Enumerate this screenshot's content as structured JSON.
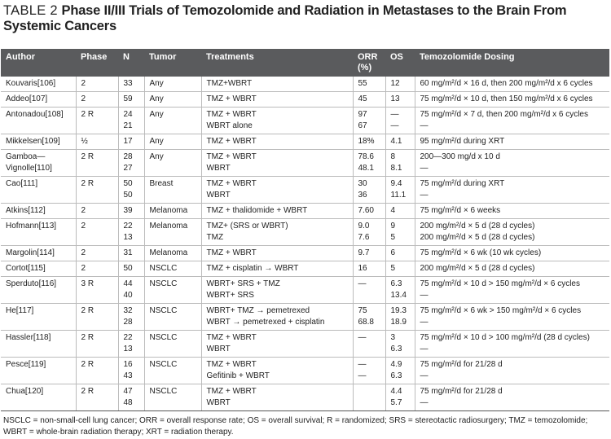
{
  "title": {
    "label": "TABLE 2",
    "text": "Phase II/III Trials of Temozolomide and Radiation in Metastases to the Brain From Systemic Cancers"
  },
  "table": {
    "header": [
      [
        "Author"
      ],
      [
        "Phase"
      ],
      [
        "N"
      ],
      [
        "Tumor"
      ],
      [
        "Treatments"
      ],
      [
        "ORR",
        "(%)"
      ],
      [
        "OS"
      ],
      [
        "Temozolomide Dosing"
      ]
    ],
    "rows": [
      [
        [
          "Kouvaris[106]"
        ],
        [
          "2"
        ],
        [
          "33"
        ],
        [
          "Any"
        ],
        [
          "TMZ+WBRT"
        ],
        [
          "55"
        ],
        [
          "12"
        ],
        [
          "60 mg/m²/d × 16 d, then 200 mg/m²/d x 6 cycles"
        ]
      ],
      [
        [
          "Addeo[107]"
        ],
        [
          "2"
        ],
        [
          "59"
        ],
        [
          "Any"
        ],
        [
          "TMZ + WBRT"
        ],
        [
          "45"
        ],
        [
          "13"
        ],
        [
          "75 mg/m²/d × 10 d, then 150 mg/m²/d x 6 cycles"
        ]
      ],
      [
        [
          "Antonadou[108]"
        ],
        [
          "2 R"
        ],
        [
          "24",
          "21"
        ],
        [
          "Any"
        ],
        [
          "TMZ + WBRT",
          "WBRT alone"
        ],
        [
          "97",
          "67"
        ],
        [
          "—",
          "—"
        ],
        [
          "75 mg/m²/d × 7 d, then 200 mg/m²/d x 6 cycles",
          "—"
        ]
      ],
      [
        [
          "Mikkelsen[109]"
        ],
        [
          "½"
        ],
        [
          "17"
        ],
        [
          "Any"
        ],
        [
          "TMZ + WBRT"
        ],
        [
          "18%"
        ],
        [
          "4.1"
        ],
        [
          "95 mg/m²/d during XRT"
        ]
      ],
      [
        [
          "Gamboa—",
          "Vignolle[110]"
        ],
        [
          "2 R"
        ],
        [
          "28",
          "27"
        ],
        [
          "Any"
        ],
        [
          "TMZ + WBRT",
          "WBRT"
        ],
        [
          "78.6",
          "48.1"
        ],
        [
          "8",
          "8.1"
        ],
        [
          "200—300 mg/d x 10 d",
          "—"
        ]
      ],
      [
        [
          "Cao[111]"
        ],
        [
          "2 R"
        ],
        [
          "50",
          "50"
        ],
        [
          "Breast"
        ],
        [
          "TMZ + WBRT",
          "WBRT"
        ],
        [
          "30",
          "36"
        ],
        [
          "9.4",
          "11.1"
        ],
        [
          "75 mg/m²/d during XRT",
          "—"
        ]
      ],
      [
        [
          "Atkins[112]"
        ],
        [
          "2"
        ],
        [
          "39"
        ],
        [
          "Melanoma"
        ],
        [
          "TMZ + thalidomide + WBRT"
        ],
        [
          "7.60"
        ],
        [
          "4"
        ],
        [
          "75 mg/m²/d × 6 weeks"
        ]
      ],
      [
        [
          "Hofmann[113]"
        ],
        [
          "2"
        ],
        [
          "22",
          "13"
        ],
        [
          "Melanoma"
        ],
        [
          "TMZ+ (SRS or WBRT)",
          "TMZ"
        ],
        [
          "9.0",
          "7.6"
        ],
        [
          "9",
          "5"
        ],
        [
          "200 mg/m²/d × 5 d (28 d cycles)",
          "200 mg/m²/d × 5 d (28 d cycles)"
        ]
      ],
      [
        [
          "Margolin[114]"
        ],
        [
          "2"
        ],
        [
          "31"
        ],
        [
          "Melanoma"
        ],
        [
          "TMZ + WBRT"
        ],
        [
          "9.7"
        ],
        [
          "6"
        ],
        [
          "75 mg/m²/d × 6 wk (10 wk cycles)"
        ]
      ],
      [
        [
          "Cortot[115]"
        ],
        [
          "2"
        ],
        [
          "50"
        ],
        [
          "NSCLC"
        ],
        [
          "TMZ + cisplatin → WBRT"
        ],
        [
          "16"
        ],
        [
          "5"
        ],
        [
          "200 mg/m²/d × 5 d (28 d cycles)"
        ]
      ],
      [
        [
          "Sperduto[116]"
        ],
        [
          "3 R"
        ],
        [
          "44",
          "40"
        ],
        [
          "NSCLC"
        ],
        [
          "WBRT+ SRS + TMZ",
          "WBRT+ SRS"
        ],
        [
          "—"
        ],
        [
          "6.3",
          "13.4"
        ],
        [
          "75 mg/m²/d × 10 d > 150 mg/m²/d × 6 cycles",
          "—"
        ]
      ],
      [
        [
          "He[117]"
        ],
        [
          "2 R"
        ],
        [
          "32",
          "28"
        ],
        [
          "NSCLC"
        ],
        [
          "WBRT+ TMZ → pemetrexed",
          "WBRT → pemetrexed + cisplatin"
        ],
        [
          "75",
          "68.8"
        ],
        [
          "19.3",
          "18.9"
        ],
        [
          "75 mg/m²/d × 6 wk > 150 mg/m²/d × 6 cycles",
          "—"
        ]
      ],
      [
        [
          "Hassler[118]"
        ],
        [
          "2 R"
        ],
        [
          "22",
          "13"
        ],
        [
          "NSCLC"
        ],
        [
          "TMZ + WBRT",
          "WBRT"
        ],
        [
          "—"
        ],
        [
          "3",
          "6.3"
        ],
        [
          "75 mg/m²/d × 10 d > 100 mg/m²/d (28 d cycles)",
          "—"
        ]
      ],
      [
        [
          "Pesce[119]"
        ],
        [
          "2 R"
        ],
        [
          "16",
          "43"
        ],
        [
          "NSCLC"
        ],
        [
          "TMZ + WBRT",
          "Gefitinib + WBRT"
        ],
        [
          "—",
          "—"
        ],
        [
          "4.9",
          "6.3"
        ],
        [
          "75 mg/m²/d for 21/28 d",
          "—"
        ]
      ],
      [
        [
          "Chua[120]"
        ],
        [
          "2 R"
        ],
        [
          "47",
          "48"
        ],
        [
          "NSCLC"
        ],
        [
          "TMZ + WBRT",
          "WBRT"
        ],
        [],
        [
          "4.4",
          "5.7"
        ],
        [
          "75 mg/m²/d for 21/28 d",
          "—"
        ]
      ]
    ]
  },
  "footnote": "NSCLC = non-small-cell lung cancer; ORR = overall response rate; OS = overall survival; R = randomized; SRS = stereotactic radiosurgery; TMZ = temozolomide; WBRT = whole-brain radiation therapy; XRT = radiation therapy."
}
